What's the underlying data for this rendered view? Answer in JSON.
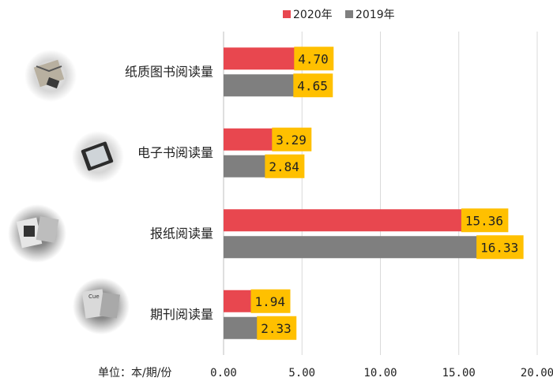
{
  "chart_data": {
    "type": "bar",
    "orientation": "horizontal",
    "categories": [
      "纸质图书阅读量",
      "电子书阅读量",
      "报纸阅读量",
      "期刊阅读量"
    ],
    "series": [
      {
        "name": "2020年",
        "values": [
          4.7,
          3.29,
          15.36,
          1.94
        ],
        "color": "#e8474f",
        "labels": [
          "4.70",
          "3.29",
          "15.36",
          "1.94"
        ]
      },
      {
        "name": "2019年",
        "values": [
          4.65,
          2.84,
          16.33,
          2.33
        ],
        "color": "#7f7f7f",
        "labels": [
          "4.65",
          "2.84",
          "16.33",
          "2.33"
        ]
      }
    ],
    "xlim": [
      0,
      20
    ],
    "x_ticks": [
      "0.00",
      "5.00",
      "10.00",
      "15.00",
      "20.00"
    ],
    "xlabel": "单位：本/期/份",
    "legend_position": "top",
    "grid": "vertical",
    "label_box_color": "#ffc000"
  },
  "icons": [
    "book-photo-icon",
    "ebook-photo-icon",
    "newspaper-photo-icon",
    "magazine-photo-icon"
  ]
}
